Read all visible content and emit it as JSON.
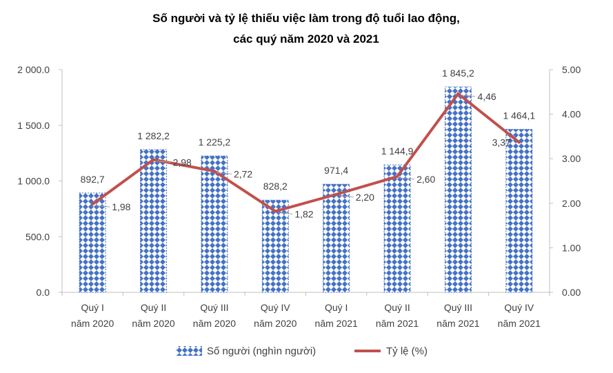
{
  "chart_data": {
    "type": "bar+line",
    "title_line1": "Số người và tỷ lệ thiếu việc làm trong độ tuổi lao động,",
    "title_line2": "các quý năm 2020 và 2021",
    "categories": [
      [
        "Quý I",
        "năm 2020"
      ],
      [
        "Quý II",
        "năm 2020"
      ],
      [
        "Quý III",
        "năm 2020"
      ],
      [
        "Quý IV",
        "năm 2020"
      ],
      [
        "Quý I",
        "năm 2021"
      ],
      [
        "Quý II",
        "năm 2021"
      ],
      [
        "Quý III",
        "năm 2021"
      ],
      [
        "Quý IV",
        "năm 2021"
      ]
    ],
    "bar_series": {
      "name": "Số người (nghìn người)",
      "values": [
        892.7,
        1282.2,
        1225.2,
        828.2,
        971.4,
        1144.9,
        1845.2,
        1464.1
      ],
      "labels": [
        "892,7",
        "1 282,2",
        "1 225,2",
        "828,2",
        "971,4",
        "1 144,9",
        "1 845,2",
        "1 464,1"
      ],
      "color": "#4472c4"
    },
    "line_series": {
      "name": "Tỷ lệ (%)",
      "values": [
        1.98,
        2.98,
        2.72,
        1.82,
        2.2,
        2.6,
        4.46,
        3.37
      ],
      "labels": [
        "1,98",
        "2,98",
        "2,72",
        "1,82",
        "2,20",
        "2,60",
        "4,46",
        "3,37"
      ],
      "color": "#c0504d"
    },
    "y_left": {
      "min": 0,
      "max": 2000,
      "ticks": [
        0,
        500,
        1000,
        1500,
        2000
      ],
      "tick_labels": [
        "0.0",
        "500.0",
        "1 000.0",
        "1 500.0",
        "2 000.0"
      ]
    },
    "y_right": {
      "min": 0,
      "max": 5,
      "ticks": [
        0,
        1,
        2,
        3,
        4,
        5
      ],
      "tick_labels": [
        "0.00",
        "1.00",
        "2.00",
        "3.00",
        "4.00",
        "5.00"
      ]
    },
    "grid": false,
    "legend": "bottom"
  }
}
